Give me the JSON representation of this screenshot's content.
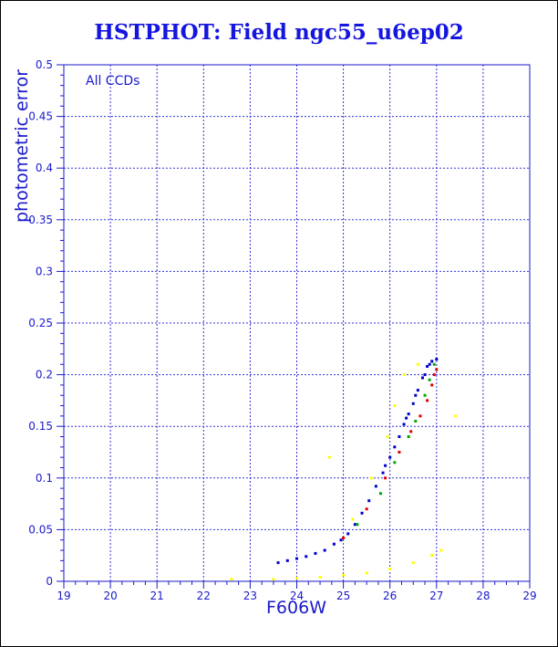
{
  "chart_data": {
    "type": "scatter",
    "title": "HSTPHOT: Field ngc55_u6ep02",
    "xlabel": "F606W",
    "ylabel": "photometric error",
    "annotation": "All CCDs",
    "xlim": [
      19,
      29
    ],
    "ylim": [
      0,
      0.5
    ],
    "x_ticks": [
      "19",
      "20",
      "21",
      "22",
      "23",
      "24",
      "25",
      "26",
      "27",
      "28",
      "29"
    ],
    "y_ticks": [
      "0",
      "0.05",
      "0.1",
      "0.15",
      "0.2",
      "0.25",
      "0.3",
      "0.35",
      "0.4",
      "0.45",
      "0.5"
    ],
    "grid": true,
    "colors": {
      "text": "#1a1acc",
      "axes": "#1a1acc",
      "grid": "#3333dd",
      "series": [
        "#0000cc",
        "#dd0000",
        "#00aa00",
        "#ffff00"
      ]
    },
    "series": [
      {
        "values": [
          [
            23.6,
            0.018
          ],
          [
            23.8,
            0.02
          ],
          [
            24.0,
            0.022
          ],
          [
            24.2,
            0.024
          ],
          [
            24.4,
            0.027
          ],
          [
            24.6,
            0.03
          ],
          [
            24.8,
            0.036
          ],
          [
            24.95,
            0.04
          ],
          [
            25.1,
            0.046
          ],
          [
            25.25,
            0.055
          ],
          [
            25.4,
            0.066
          ],
          [
            25.55,
            0.078
          ],
          [
            25.7,
            0.092
          ],
          [
            25.85,
            0.105
          ],
          [
            26.0,
            0.12
          ],
          [
            26.1,
            0.13
          ],
          [
            26.2,
            0.14
          ],
          [
            26.3,
            0.152
          ],
          [
            26.4,
            0.162
          ],
          [
            26.5,
            0.172
          ],
          [
            26.6,
            0.185
          ],
          [
            26.7,
            0.197
          ],
          [
            26.8,
            0.208
          ],
          [
            26.9,
            0.213
          ],
          [
            27.0,
            0.215
          ],
          [
            25.9,
            0.112
          ],
          [
            26.35,
            0.158
          ],
          [
            26.55,
            0.18
          ],
          [
            26.75,
            0.2
          ],
          [
            26.85,
            0.21
          ]
        ]
      },
      {
        "values": [
          [
            25.0,
            0.042
          ],
          [
            25.5,
            0.07
          ],
          [
            25.9,
            0.1
          ],
          [
            26.2,
            0.125
          ],
          [
            26.45,
            0.145
          ],
          [
            26.65,
            0.16
          ],
          [
            26.8,
            0.175
          ],
          [
            26.9,
            0.19
          ],
          [
            27.0,
            0.205
          ],
          [
            26.95,
            0.2
          ]
        ]
      },
      {
        "values": [
          [
            25.3,
            0.055
          ],
          [
            25.8,
            0.085
          ],
          [
            26.1,
            0.115
          ],
          [
            26.4,
            0.14
          ],
          [
            26.55,
            0.155
          ],
          [
            26.75,
            0.18
          ],
          [
            26.85,
            0.195
          ],
          [
            26.95,
            0.21
          ]
        ]
      },
      {
        "values": [
          [
            22.6,
            0.002
          ],
          [
            23.5,
            0.002
          ],
          [
            24.0,
            0.003
          ],
          [
            24.5,
            0.004
          ],
          [
            25.0,
            0.006
          ],
          [
            25.5,
            0.008
          ],
          [
            26.0,
            0.012
          ],
          [
            26.5,
            0.018
          ],
          [
            26.9,
            0.025
          ],
          [
            27.1,
            0.03
          ],
          [
            25.2,
            0.06
          ],
          [
            25.6,
            0.1
          ],
          [
            25.95,
            0.14
          ],
          [
            26.3,
            0.2
          ],
          [
            27.4,
            0.16
          ],
          [
            24.7,
            0.12
          ],
          [
            26.6,
            0.21
          ],
          [
            26.1,
            0.17
          ]
        ]
      }
    ]
  }
}
